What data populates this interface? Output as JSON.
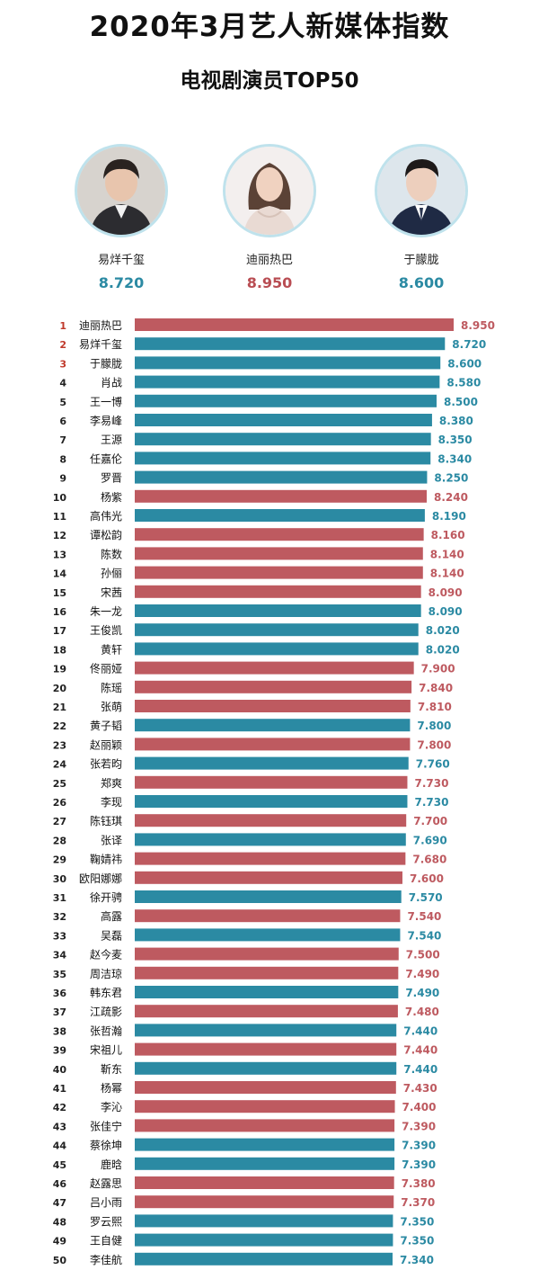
{
  "header": {
    "title": "2020年3月艺人新媒体指数",
    "subtitle": "电视剧演员TOP50"
  },
  "podium": [
    {
      "name": "易烊千玺",
      "score": "8.720",
      "color": "#2b8aa3",
      "photo": "young man in dark suit"
    },
    {
      "name": "迪丽热巴",
      "score": "8.950",
      "color": "#b94d53",
      "photo": "young woman in light dress"
    },
    {
      "name": "于朦胧",
      "score": "8.600",
      "color": "#2b8aa3",
      "photo": "young man in dark suit"
    }
  ],
  "colors": {
    "blue": "#2b8aa3",
    "red": "#be5a60",
    "rank_top": "#c0392b"
  },
  "chart_data": {
    "type": "bar",
    "orientation": "horizontal",
    "xlim": [
      0,
      8.95
    ],
    "categories": [
      "迪丽热巴",
      "易烊千玺",
      "于朦胧",
      "肖战",
      "王一博",
      "李易峰",
      "王源",
      "任嘉伦",
      "罗晋",
      "杨紫",
      "高伟光",
      "谭松韵",
      "陈数",
      "孙俪",
      "宋茜",
      "朱一龙",
      "王俊凯",
      "黄轩",
      "佟丽娅",
      "陈瑶",
      "张萌",
      "黄子韬",
      "赵丽颖",
      "张若昀",
      "郑爽",
      "李现",
      "陈钰琪",
      "张译",
      "鞠婧祎",
      "欧阳娜娜",
      "徐开骋",
      "高露",
      "吴磊",
      "赵今麦",
      "周洁琼",
      "韩东君",
      "江疏影",
      "张哲瀚",
      "宋祖儿",
      "靳东",
      "杨幂",
      "李沁",
      "张佳宁",
      "蔡徐坤",
      "鹿晗",
      "赵露思",
      "吕小雨",
      "罗云熙",
      "王自健",
      "李佳航"
    ],
    "values": [
      8.95,
      8.72,
      8.6,
      8.58,
      8.5,
      8.38,
      8.35,
      8.34,
      8.25,
      8.24,
      8.19,
      8.16,
      8.14,
      8.14,
      8.09,
      8.09,
      8.02,
      8.02,
      7.9,
      7.84,
      7.81,
      7.8,
      7.8,
      7.76,
      7.73,
      7.73,
      7.7,
      7.69,
      7.68,
      7.6,
      7.57,
      7.54,
      7.54,
      7.5,
      7.49,
      7.49,
      7.48,
      7.44,
      7.44,
      7.44,
      7.43,
      7.4,
      7.39,
      7.39,
      7.39,
      7.38,
      7.37,
      7.35,
      7.35,
      7.34
    ],
    "labels": [
      "8.950",
      "8.720",
      "8.600",
      "8.580",
      "8.500",
      "8.380",
      "8.350",
      "8.340",
      "8.250",
      "8.240",
      "8.190",
      "8.160",
      "8.140",
      "8.140",
      "8.090",
      "8.090",
      "8.020",
      "8.020",
      "7.900",
      "7.840",
      "7.810",
      "7.800",
      "7.800",
      "7.760",
      "7.730",
      "7.730",
      "7.700",
      "7.690",
      "7.680",
      "7.600",
      "7.570",
      "7.540",
      "7.540",
      "7.500",
      "7.490",
      "7.490",
      "7.480",
      "7.440",
      "7.440",
      "7.440",
      "7.430",
      "7.400",
      "7.390",
      "7.390",
      "7.390",
      "7.380",
      "7.370",
      "7.350",
      "7.350",
      "7.340"
    ],
    "ranks": [
      "1",
      "2",
      "3",
      "4",
      "5",
      "6",
      "7",
      "8",
      "9",
      "10",
      "11",
      "12",
      "13",
      "14",
      "15",
      "16",
      "17",
      "18",
      "19",
      "20",
      "21",
      "22",
      "23",
      "24",
      "25",
      "26",
      "27",
      "28",
      "29",
      "30",
      "31",
      "32",
      "33",
      "34",
      "35",
      "36",
      "37",
      "38",
      "39",
      "40",
      "41",
      "42",
      "43",
      "44",
      "45",
      "46",
      "47",
      "48",
      "49",
      "50"
    ],
    "bar_colors": [
      "red",
      "blue",
      "blue",
      "blue",
      "blue",
      "blue",
      "blue",
      "blue",
      "blue",
      "red",
      "blue",
      "red",
      "red",
      "red",
      "red",
      "blue",
      "blue",
      "blue",
      "red",
      "red",
      "red",
      "blue",
      "red",
      "blue",
      "red",
      "blue",
      "red",
      "blue",
      "red",
      "red",
      "blue",
      "red",
      "blue",
      "red",
      "red",
      "blue",
      "red",
      "blue",
      "red",
      "blue",
      "red",
      "red",
      "red",
      "blue",
      "blue",
      "red",
      "red",
      "blue",
      "blue",
      "blue"
    ],
    "grid": false,
    "legend": "none"
  }
}
